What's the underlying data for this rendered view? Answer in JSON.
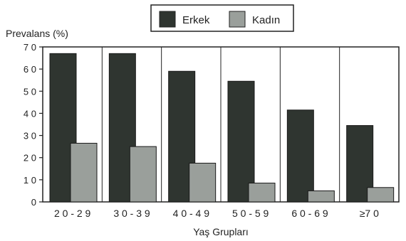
{
  "chart_data": {
    "type": "bar",
    "ylabel": "Prevalans (%)",
    "xlabel": "Yaş Grupları",
    "ylim": [
      0,
      70
    ],
    "yticks": [
      0,
      10,
      20,
      30,
      40,
      50,
      60,
      70
    ],
    "ytick_labels": [
      "0",
      "1 0",
      "2 0",
      "3 0",
      "4 0",
      "5 0",
      "6 0",
      "7 0"
    ],
    "categories": [
      "20-29",
      "30-39",
      "40-49",
      "50-59",
      "60-69",
      "≥70"
    ],
    "category_labels": [
      "2 0 - 2 9",
      "3 0 - 3 9",
      "4 0 - 4 9",
      "5 0 - 5 9",
      "6 0 - 6 9",
      "≥7 0"
    ],
    "legend_position": "top-center",
    "grid": "vertical",
    "series": [
      {
        "name": "Erkek",
        "color": "#2f3530",
        "values": [
          67,
          67,
          59,
          54.5,
          41.5,
          34.5
        ]
      },
      {
        "name": "Kadın",
        "color": "#9a9f9b",
        "values": [
          26.5,
          25,
          17.5,
          8.5,
          5,
          6.5
        ]
      }
    ]
  }
}
